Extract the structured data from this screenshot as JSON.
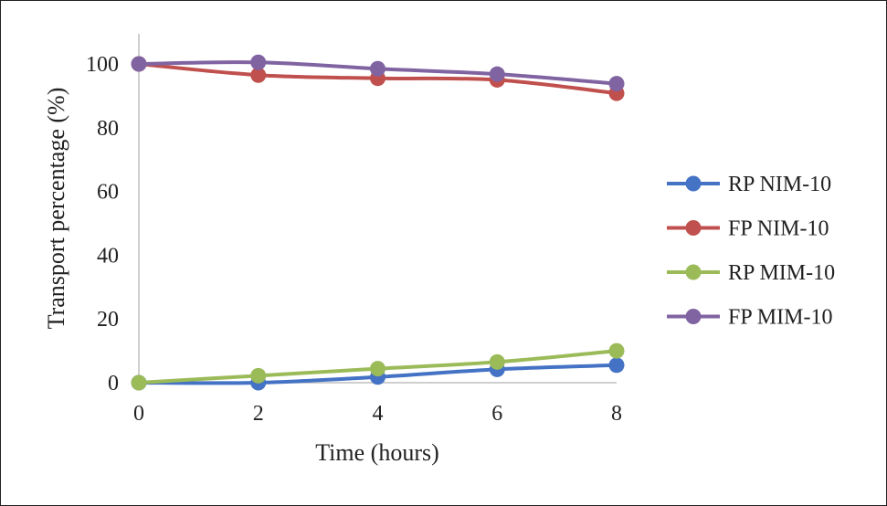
{
  "chart_data": {
    "type": "line",
    "title": "",
    "xlabel": "Time (hours)",
    "ylabel": "Transport percentage (%)",
    "x": [
      0,
      2,
      4,
      6,
      8
    ],
    "xticks": [
      "0",
      "2",
      "4",
      "6",
      "8"
    ],
    "yticks": [
      "0",
      "20",
      "40",
      "60",
      "80",
      "100"
    ],
    "xlim": [
      0,
      8
    ],
    "ylim": [
      0,
      110
    ],
    "grid": false,
    "legend_position": "right",
    "series": [
      {
        "name": "RP NIM-10",
        "color": "#4472C4",
        "values": [
          0,
          0,
          1.8,
          4.2,
          5.5
        ]
      },
      {
        "name": "FP NIM-10",
        "color": "#C0504D",
        "values": [
          100,
          96.5,
          95.5,
          95,
          90.8
        ]
      },
      {
        "name": "RP MIM-10",
        "color": "#9BBB59",
        "values": [
          0,
          2.2,
          4.4,
          6.5,
          10
        ]
      },
      {
        "name": "FP MIM-10",
        "color": "#8064A2",
        "values": [
          100,
          100.5,
          98.5,
          96.8,
          93.8
        ]
      }
    ]
  }
}
